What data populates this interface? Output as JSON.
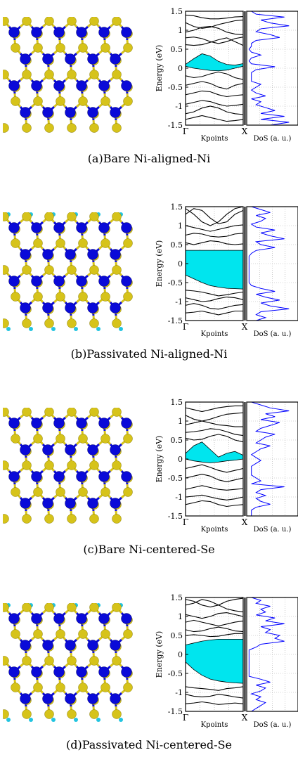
{
  "panels": [
    {
      "id": "a",
      "caption": "(a)Bare Ni-aligned-Ni",
      "passivated": false,
      "chart_data": {
        "type": "line",
        "ylabel": "Energy (eV)",
        "xlabel": "Kpoints",
        "dos_label": "DoS (a. u.)",
        "x_ticks": [
          "Γ",
          "X"
        ],
        "y_ticks": [
          "1.5",
          "1",
          "0.5",
          "0",
          "-0.5",
          "-1",
          "-1.5"
        ],
        "ylim": [
          -1.5,
          1.5
        ],
        "grid": true,
        "shaded_band": {
          "top": [
            0.1,
            0.25,
            0.38,
            0.32,
            0.18,
            0.1,
            0.08,
            0.12
          ],
          "bottom": [
            0.05,
            0.0,
            -0.03,
            -0.06,
            -0.07,
            -0.05,
            0.0,
            0.05
          ]
        },
        "bands": [
          [
            1.4,
            1.38,
            1.33,
            1.3,
            1.3,
            1.32,
            1.35,
            1.36
          ],
          [
            1.2,
            1.1,
            1.05,
            1.08,
            1.15,
            1.2,
            1.25,
            1.27
          ],
          [
            0.95,
            1.0,
            1.08,
            1.1,
            1.05,
            0.95,
            0.9,
            0.88
          ],
          [
            0.8,
            0.82,
            0.78,
            0.7,
            0.65,
            0.7,
            0.78,
            0.82
          ],
          [
            0.62,
            0.6,
            0.62,
            0.68,
            0.75,
            0.8,
            0.7,
            0.6
          ],
          [
            -0.2,
            -0.25,
            -0.22,
            -0.15,
            -0.1,
            -0.15,
            -0.25,
            -0.3
          ],
          [
            -0.45,
            -0.4,
            -0.35,
            -0.4,
            -0.5,
            -0.55,
            -0.45,
            -0.4
          ],
          [
            -0.7,
            -0.65,
            -0.6,
            -0.62,
            -0.7,
            -0.75,
            -0.72,
            -0.7
          ],
          [
            -0.95,
            -0.9,
            -0.85,
            -0.88,
            -0.95,
            -1.0,
            -0.98,
            -0.95
          ],
          [
            -1.2,
            -1.15,
            -1.05,
            -1.0,
            -1.05,
            -1.15,
            -1.2,
            -1.22
          ],
          [
            -1.35,
            -1.3,
            -1.25,
            -1.3,
            -1.35,
            -1.4,
            -1.38,
            -1.35
          ]
        ],
        "dos": [
          0.1,
          0.2,
          0.8,
          0.3,
          0.5,
          0.9,
          0.3,
          0.2,
          0.5,
          0.7,
          0.2,
          0.1,
          0.1,
          0.05,
          0.1,
          0.3,
          0.1,
          0.05,
          0.1,
          0.6,
          0.2,
          0.1,
          0.1,
          0.1,
          0.1,
          0.3,
          0.2,
          0.1,
          0.2,
          0.4,
          0.1,
          0.3,
          0.2,
          0.4,
          0.6,
          0.3,
          0.8,
          0.3,
          0.9,
          0.5
        ]
      }
    },
    {
      "id": "b",
      "caption": "(b)Passivated Ni-aligned-Ni",
      "passivated": true,
      "chart_data": {
        "type": "line",
        "ylabel": "Energy (eV)",
        "xlabel": "Kpoints",
        "dos_label": "DoS (a. u.)",
        "x_ticks": [
          "Γ",
          "X"
        ],
        "y_ticks": [
          "1.5",
          "1",
          "0.5",
          "0",
          "-0.5",
          "-1",
          "-1.5"
        ],
        "ylim": [
          -1.5,
          1.5
        ],
        "grid": true,
        "shaded_band": {
          "top": [
            0.35,
            0.35,
            0.35,
            0.35,
            0.35,
            0.35,
            0.35,
            0.35
          ],
          "bottom": [
            -0.3,
            -0.4,
            -0.5,
            -0.58,
            -0.62,
            -0.65,
            -0.66,
            -0.67
          ]
        },
        "bands": [
          [
            1.45,
            1.3,
            1.1,
            1.0,
            1.1,
            1.3,
            1.45,
            1.5
          ],
          [
            1.3,
            1.45,
            1.4,
            1.2,
            1.05,
            1.1,
            1.3,
            1.4
          ],
          [
            1.0,
            0.95,
            0.9,
            0.85,
            0.9,
            0.95,
            1.0,
            1.02
          ],
          [
            0.75,
            0.8,
            0.78,
            0.72,
            0.7,
            0.72,
            0.78,
            0.8
          ],
          [
            0.55,
            0.5,
            0.55,
            0.6,
            0.58,
            0.52,
            0.5,
            0.52
          ],
          [
            -0.7,
            -0.72,
            -0.75,
            -0.8,
            -0.85,
            -0.82,
            -0.78,
            -0.75
          ],
          [
            -0.9,
            -0.95,
            -1.0,
            -0.98,
            -0.92,
            -0.88,
            -0.9,
            -0.95
          ],
          [
            -1.1,
            -1.05,
            -1.1,
            -1.18,
            -1.2,
            -1.15,
            -1.1,
            -1.08
          ],
          [
            -1.3,
            -1.28,
            -1.25,
            -1.3,
            -1.35,
            -1.3,
            -1.25,
            -1.25
          ]
        ],
        "dos": [
          0.1,
          0.3,
          0.5,
          0.2,
          0.4,
          0.3,
          0.1,
          0.2,
          0.6,
          0.3,
          0.5,
          0.8,
          0.2,
          0.3,
          0.6,
          0.2,
          0.1,
          0.05,
          0.05,
          0.05,
          0.05,
          0.05,
          0.05,
          0.05,
          0.05,
          0.05,
          0.05,
          0.1,
          0.3,
          0.6,
          0.2,
          0.4,
          0.7,
          0.3,
          0.5,
          0.9,
          0.3,
          0.2,
          0.4,
          0.2
        ]
      }
    },
    {
      "id": "c",
      "caption": "(c)Bare Ni-centered-Se",
      "passivated": false,
      "chart_data": {
        "type": "line",
        "ylabel": "Energy (eV)",
        "xlabel": "Kpoints",
        "dos_label": "DoS (a. u.)",
        "x_ticks": [
          "Γ",
          "X"
        ],
        "y_ticks": [
          "1.5",
          "1",
          "0.5",
          "0",
          "-0.5",
          "-1",
          "-1.5"
        ],
        "ylim": [
          -1.5,
          1.5
        ],
        "grid": true,
        "shaded_band": {
          "top": [
            0.15,
            0.35,
            0.45,
            0.25,
            0.05,
            0.15,
            0.2,
            0.1
          ],
          "bottom": [
            0.0,
            -0.05,
            -0.08,
            -0.1,
            -0.08,
            -0.05,
            -0.03,
            0.0
          ]
        },
        "bands": [
          [
            1.35,
            1.3,
            1.25,
            1.3,
            1.35,
            1.38,
            1.4,
            1.4
          ],
          [
            1.15,
            1.05,
            1.0,
            1.05,
            1.12,
            1.18,
            1.2,
            1.22
          ],
          [
            0.9,
            0.95,
            1.0,
            0.95,
            0.9,
            0.88,
            0.85,
            0.85
          ],
          [
            0.7,
            0.72,
            0.75,
            0.8,
            0.78,
            0.72,
            0.65,
            0.62
          ],
          [
            0.55,
            0.5,
            0.52,
            0.6,
            0.65,
            0.6,
            0.5,
            0.45
          ],
          [
            -0.25,
            -0.2,
            -0.15,
            -0.22,
            -0.3,
            -0.35,
            -0.3,
            -0.25
          ],
          [
            -0.5,
            -0.45,
            -0.4,
            -0.45,
            -0.55,
            -0.6,
            -0.55,
            -0.5
          ],
          [
            -0.8,
            -0.75,
            -0.7,
            -0.75,
            -0.8,
            -0.82,
            -0.8,
            -0.78
          ],
          [
            -1.0,
            -0.98,
            -0.95,
            -1.0,
            -1.05,
            -1.08,
            -1.05,
            -1.0
          ],
          [
            -1.2,
            -1.15,
            -1.1,
            -1.12,
            -1.2,
            -1.25,
            -1.22,
            -1.2
          ]
        ],
        "dos": [
          0.1,
          0.3,
          0.5,
          0.9,
          0.4,
          0.6,
          0.3,
          0.7,
          0.5,
          0.3,
          0.2,
          0.6,
          0.4,
          0.3,
          0.2,
          0.5,
          0.3,
          0.2,
          0.1,
          0.2,
          0.3,
          0.2,
          0.1,
          0.1,
          0.1,
          0.1,
          0.2,
          0.3,
          0.1,
          0.8,
          0.3,
          0.2,
          0.4,
          0.2,
          0.3,
          0.5,
          0.2,
          0.1,
          0.1,
          0.1
        ]
      }
    },
    {
      "id": "d",
      "caption": "(d)Passivated Ni-centered-Se",
      "passivated": true,
      "chart_data": {
        "type": "line",
        "ylabel": "Energy (eV)",
        "xlabel": "Kpoints",
        "dos_label": "DoS (a. u.)",
        "x_ticks": [
          "Γ",
          "X"
        ],
        "y_ticks": [
          "1.5",
          "1",
          "0.5",
          "0",
          "-0.5",
          "-1",
          "-1.5"
        ],
        "ylim": [
          -1.5,
          1.5
        ],
        "grid": true,
        "shaded_band": {
          "top": [
            0.25,
            0.3,
            0.35,
            0.38,
            0.4,
            0.4,
            0.4,
            0.4
          ],
          "bottom": [
            -0.2,
            -0.4,
            -0.55,
            -0.65,
            -0.7,
            -0.73,
            -0.75,
            -0.76
          ]
        },
        "bands": [
          [
            1.45,
            1.4,
            1.3,
            1.25,
            1.3,
            1.4,
            1.45,
            1.48
          ],
          [
            1.3,
            1.35,
            1.45,
            1.4,
            1.3,
            1.2,
            1.15,
            1.12
          ],
          [
            1.05,
            1.0,
            0.95,
            1.0,
            1.08,
            1.1,
            1.05,
            1.0
          ],
          [
            0.85,
            0.9,
            0.85,
            0.8,
            0.75,
            0.8,
            0.85,
            0.88
          ],
          [
            0.65,
            0.6,
            0.62,
            0.68,
            0.72,
            0.68,
            0.62,
            0.6
          ],
          [
            0.5,
            0.52,
            0.5,
            0.47,
            0.48,
            0.52,
            0.55,
            0.55
          ],
          [
            -0.85,
            -0.88,
            -0.9,
            -0.92,
            -0.95,
            -0.9,
            -0.88,
            -0.85
          ],
          [
            -1.05,
            -1.1,
            -1.12,
            -1.1,
            -1.05,
            -1.08,
            -1.12,
            -1.15
          ],
          [
            -1.3,
            -1.28,
            -1.25,
            -1.28,
            -1.32,
            -1.3,
            -1.28,
            -1.3
          ]
        ],
        "dos": [
          0.1,
          0.3,
          0.2,
          0.5,
          0.3,
          0.4,
          0.2,
          0.6,
          0.4,
          0.8,
          0.3,
          0.5,
          0.4,
          0.7,
          0.6,
          0.8,
          0.3,
          0.2,
          0.05,
          0.05,
          0.05,
          0.05,
          0.05,
          0.05,
          0.05,
          0.05,
          0.05,
          0.05,
          0.3,
          0.5,
          0.2,
          0.4,
          0.3,
          0.1,
          0.3,
          0.2,
          0.4,
          0.3,
          0.2,
          0.1
        ]
      }
    }
  ]
}
